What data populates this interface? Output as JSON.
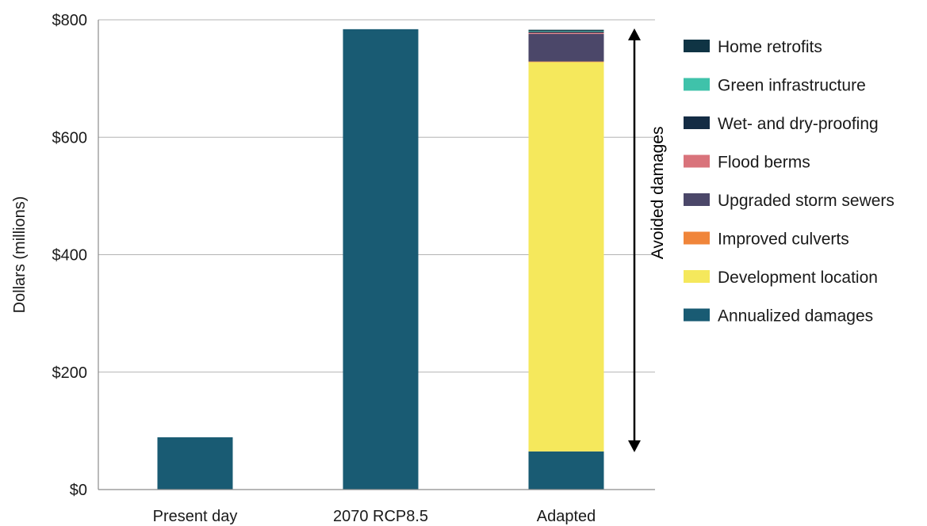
{
  "chart_data": {
    "type": "bar",
    "stacked": true,
    "categories": [
      "Present day",
      "2070 RCP8.5",
      "Adapted"
    ],
    "ylabel": "Dollars (millions)",
    "ylim": [
      0,
      800
    ],
    "yticks": [
      0,
      200,
      400,
      600,
      800
    ],
    "ytick_labels": [
      "$0",
      "$200",
      "$400",
      "$600",
      "$800"
    ],
    "grid": true,
    "legend_position": "right",
    "series": [
      {
        "name": "Annualized damages",
        "color": "#195b73",
        "values": [
          89,
          784,
          65
        ]
      },
      {
        "name": "Development location",
        "color": "#f5e85c",
        "values": [
          0,
          0,
          663
        ]
      },
      {
        "name": "Improved culverts",
        "color": "#f0853a",
        "values": [
          0,
          0,
          1
        ]
      },
      {
        "name": "Upgraded storm sewers",
        "color": "#4b4769",
        "values": [
          0,
          0,
          47
        ]
      },
      {
        "name": "Flood berms",
        "color": "#d9737b",
        "values": [
          0,
          0,
          2
        ]
      },
      {
        "name": "Wet- and dry-proofing",
        "color": "#142c44",
        "values": [
          0,
          0,
          2
        ]
      },
      {
        "name": "Green infrastructure",
        "color": "#3fc2aa",
        "values": [
          0,
          0,
          1
        ]
      },
      {
        "name": "Home retrofits",
        "color": "#0f3444",
        "values": [
          0,
          0,
          2
        ]
      }
    ],
    "legend_order": [
      "Home retrofits",
      "Green infrastructure",
      "Wet- and dry-proofing",
      "Flood berms",
      "Upgraded storm sewers",
      "Improved culverts",
      "Development location",
      "Annualized damages"
    ],
    "annotation": {
      "label": "Avoided damages",
      "from": 65,
      "to": 784,
      "category": "Adapted"
    }
  }
}
